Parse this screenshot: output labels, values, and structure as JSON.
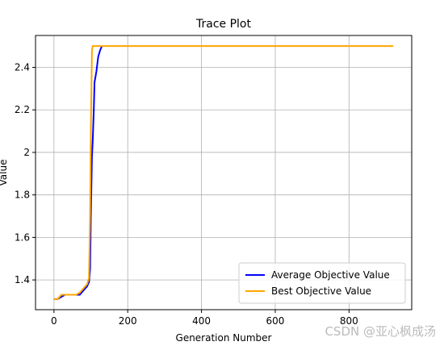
{
  "chart_data": {
    "type": "line",
    "title": "Trace Plot",
    "x_label": "Generation Number",
    "y_label": "Value",
    "x": [
      0,
      10,
      20,
      30,
      40,
      50,
      60,
      70,
      80,
      90,
      95,
      98,
      100,
      103,
      105,
      108,
      110,
      115,
      120,
      125,
      130,
      920
    ],
    "series": [
      {
        "name": "Average Objective Value",
        "color": "#0000ff",
        "values": [
          1.31,
          1.31,
          1.32,
          1.33,
          1.33,
          1.33,
          1.33,
          1.33,
          1.35,
          1.37,
          1.39,
          1.45,
          1.7,
          1.98,
          2.05,
          2.2,
          2.33,
          2.38,
          2.45,
          2.48,
          2.5,
          null
        ]
      },
      {
        "name": "Best Objective Value",
        "color": "#ffa500",
        "values": [
          1.31,
          1.31,
          1.33,
          1.33,
          1.33,
          1.33,
          1.33,
          1.34,
          1.36,
          1.38,
          1.41,
          1.7,
          2.1,
          2.48,
          2.5,
          2.5,
          2.5,
          2.5,
          2.5,
          2.5,
          2.5,
          2.5
        ]
      }
    ],
    "xlim": [
      -50,
      970
    ],
    "xticks": [
      0,
      200,
      400,
      600,
      800
    ],
    "ylim": [
      1.26,
      2.55
    ],
    "yticks": [
      1.4,
      1.6,
      1.8,
      2.0,
      2.2,
      2.4
    ],
    "grid": true,
    "legend": "lower right",
    "watermark": "CSDN @亚心枫成汤"
  }
}
